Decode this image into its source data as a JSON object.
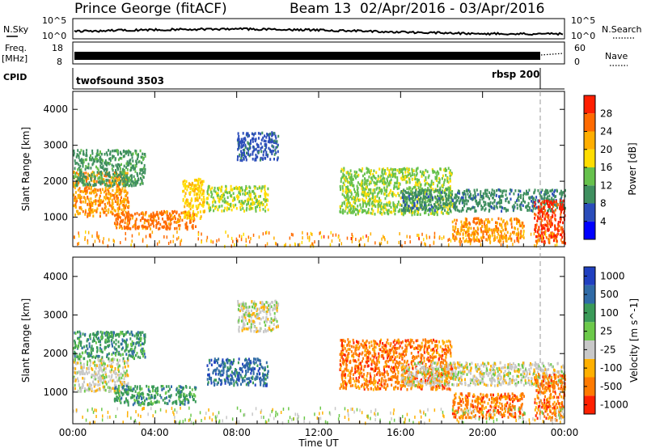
{
  "header": {
    "station": "Prince George (fitACF)",
    "beam": "Beam 13",
    "dates": "02/Apr/2016 - 03/Apr/2016"
  },
  "strip_labels": {
    "nsky": "N.Sky",
    "nsky_ticks": [
      "10^5",
      "10^0"
    ],
    "nsearch": "N.Search",
    "freq": "Freq.",
    "freq_unit": "[MHz]",
    "freq_ticks": [
      "18",
      "8"
    ],
    "nave": "Nave",
    "nave_ticks": [
      "60",
      "0"
    ],
    "cpid": "CPID",
    "cpid_modes": [
      "twofsound 3503",
      "rbsp 200"
    ]
  },
  "chart_data": [
    {
      "type": "heatmap",
      "panel": "power",
      "xlabel": "",
      "ylabel": "Slant Range [km]",
      "x_tick_labels": [
        "00:00",
        "04:00",
        "08:00",
        "12:00",
        "16:00",
        "20:00",
        "00:00"
      ],
      "xlim_hours": [
        0,
        24
      ],
      "y_ticks": [
        1000,
        2000,
        3000,
        4000
      ],
      "ylim": [
        180,
        4500
      ],
      "colorbar_label": "Power [dB]",
      "colorbar_ticks": [
        4,
        8,
        12,
        16,
        20,
        24,
        28
      ],
      "colorbar_range": [
        0,
        30
      ],
      "scatter_regions": [
        {
          "t0": 0.0,
          "t1": 2.7,
          "r0": 1050,
          "r1": 2300,
          "value": 22
        },
        {
          "t0": 0.0,
          "t1": 3.5,
          "r0": 1900,
          "r1": 2900,
          "value": 10
        },
        {
          "t0": 2.0,
          "t1": 6.0,
          "r0": 700,
          "r1": 1200,
          "value": 24
        },
        {
          "t0": 5.3,
          "t1": 6.4,
          "r0": 1000,
          "r1": 2100,
          "value": 18
        },
        {
          "t0": 6.5,
          "t1": 9.5,
          "r0": 1200,
          "r1": 1900,
          "value": 15
        },
        {
          "t0": 8.0,
          "t1": 10.0,
          "r0": 2600,
          "r1": 3400,
          "value": 6
        },
        {
          "t0": 13.0,
          "t1": 18.5,
          "r0": 1100,
          "r1": 2400,
          "value": 14
        },
        {
          "t0": 16.0,
          "t1": 24.0,
          "r0": 1200,
          "r1": 1800,
          "value": 9
        },
        {
          "t0": 18.5,
          "t1": 22.0,
          "r0": 350,
          "r1": 1000,
          "value": 22
        },
        {
          "t0": 22.5,
          "t1": 24.0,
          "r0": 300,
          "r1": 1500,
          "value": 27
        }
      ]
    },
    {
      "type": "heatmap",
      "panel": "velocity",
      "xlabel": "Time UT",
      "ylabel": "Slant Range [km]",
      "x_tick_labels": [
        "00:00",
        "04:00",
        "08:00",
        "12:00",
        "16:00",
        "20:00",
        "00:00"
      ],
      "xlim_hours": [
        0,
        24
      ],
      "y_ticks": [
        1000,
        2000,
        3000,
        4000
      ],
      "ylim": [
        180,
        4500
      ],
      "colorbar_label": "Velocity [m s^-1]",
      "colorbar_ticks": [
        1000,
        500,
        100,
        25,
        -25,
        -100,
        -500,
        -1000
      ],
      "scatter_regions": [
        {
          "t0": 0.0,
          "t1": 2.7,
          "r0": 1050,
          "r1": 1900,
          "value": 0
        },
        {
          "t0": 0.0,
          "t1": 3.5,
          "r0": 1900,
          "r1": 2600,
          "value": 80
        },
        {
          "t0": 2.0,
          "t1": 6.0,
          "r0": 700,
          "r1": 1200,
          "value": 60
        },
        {
          "t0": 6.5,
          "t1": 9.5,
          "r0": 1200,
          "r1": 1900,
          "value": 150
        },
        {
          "t0": 8.0,
          "t1": 10.0,
          "r0": 2600,
          "r1": 3400,
          "value": 0
        },
        {
          "t0": 13.0,
          "t1": 18.5,
          "r0": 1100,
          "r1": 2400,
          "value": -200
        },
        {
          "t0": 16.0,
          "t1": 24.0,
          "r0": 1200,
          "r1": 1800,
          "value": 0
        },
        {
          "t0": 18.5,
          "t1": 22.0,
          "r0": 350,
          "r1": 1000,
          "value": -300
        },
        {
          "t0": 22.5,
          "t1": 24.0,
          "r0": 300,
          "r1": 1500,
          "value": -400
        }
      ]
    }
  ],
  "colors": {
    "power_scale": [
      "#0000ff",
      "#2a4cba",
      "#3f8f5f",
      "#66c14c",
      "#ffdd00",
      "#ffae00",
      "#ff6a00",
      "#ff1e00"
    ],
    "velocity_scale": [
      "#2040c0",
      "#2f6aa6",
      "#3a9a58",
      "#6cc94a",
      "#c8c8c8",
      "#ffb000",
      "#ff7a00",
      "#ff2000"
    ]
  }
}
